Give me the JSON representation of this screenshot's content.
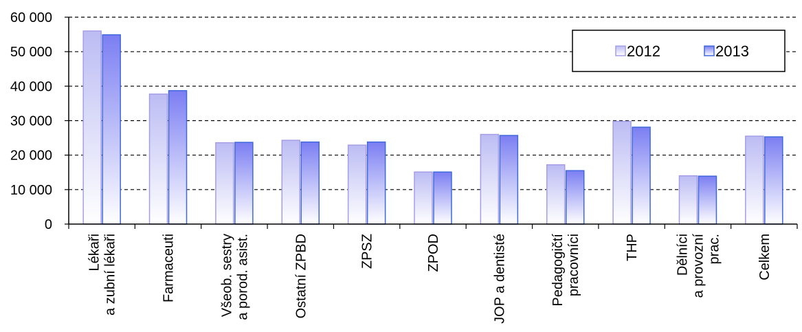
{
  "chart_data": {
    "type": "bar",
    "categories": [
      [
        "Lékaři",
        "a zubní lékaři"
      ],
      [
        "Farmaceuti"
      ],
      [
        "Všeob. sestry",
        "a porod. asist."
      ],
      [
        "Ostatní ZPBD"
      ],
      [
        "ZPSZ"
      ],
      [
        "ZPOD"
      ],
      [
        "JOP a dentisté"
      ],
      [
        "Pedagogičtí",
        "pracovníci"
      ],
      [
        "THP"
      ],
      [
        "Dělníci",
        "a provozní",
        "prac."
      ],
      [
        "Celkem"
      ]
    ],
    "series": [
      {
        "name": "2012",
        "values": [
          56000,
          37700,
          23600,
          24300,
          22900,
          15100,
          26000,
          17200,
          29800,
          14000,
          25500
        ]
      },
      {
        "name": "2013",
        "values": [
          54900,
          38700,
          23700,
          23800,
          23800,
          15100,
          25700,
          15500,
          28100,
          13900,
          25300
        ]
      }
    ],
    "ylim": [
      0,
      60000
    ],
    "yticks": [
      0,
      10000,
      20000,
      30000,
      40000,
      50000,
      60000
    ],
    "ytick_labels": [
      "0",
      "10 000",
      "20 000",
      "30 000",
      "40 000",
      "50 000",
      "60 000"
    ],
    "grid": "horizontal dashed",
    "legend_position": "top-right",
    "colors": {
      "s2012_top": "#bcbcf4",
      "s2012_bottom": "#ffffff",
      "s2012_border": "#a59ee6",
      "s2013_top": "#7b7ef2",
      "s2013_bottom": "#ffffff",
      "s2013_border": "#3f68dc"
    }
  }
}
